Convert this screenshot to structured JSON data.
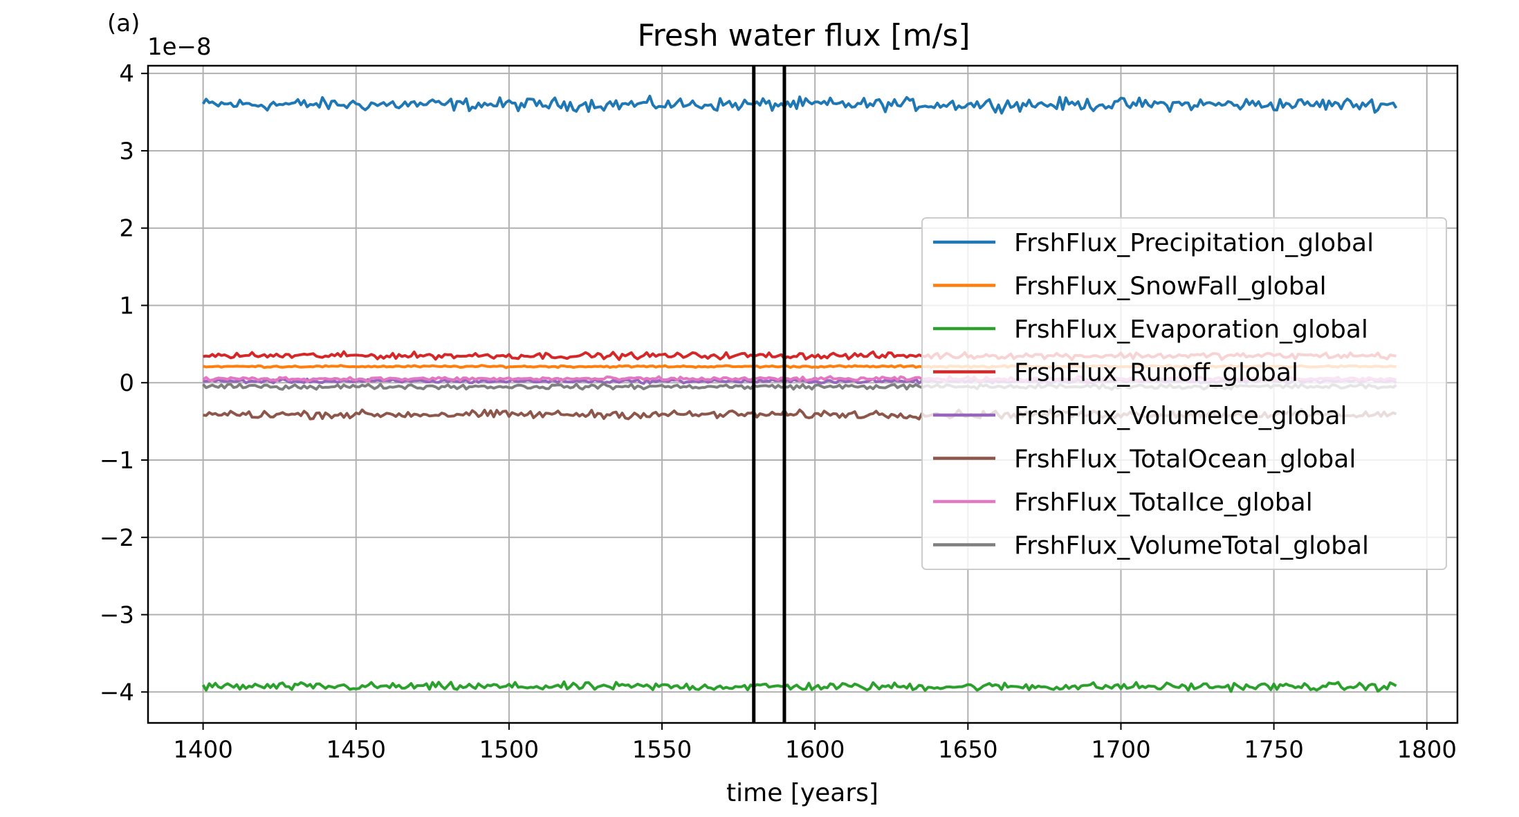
{
  "panel_label": "(a)",
  "chart_data": {
    "type": "line",
    "title": "Fresh water flux [m/s]",
    "xlabel": "time [years]",
    "ylabel": "",
    "y_scale_label": "1e−8",
    "y_scale": 1e-08,
    "xlim": [
      1382,
      1810
    ],
    "ylim": [
      -4.4,
      4.1
    ],
    "x_ticks": [
      1400,
      1450,
      1500,
      1550,
      1600,
      1650,
      1700,
      1750,
      1800
    ],
    "x_tick_labels": [
      "1400",
      "1450",
      "1500",
      "1550",
      "1600",
      "1650",
      "1700",
      "1750",
      "1800"
    ],
    "y_ticks": [
      -4,
      -3,
      -2,
      -1,
      0,
      1,
      2,
      3,
      4
    ],
    "y_tick_labels": [
      "−4",
      "−3",
      "−2",
      "−1",
      "0",
      "1",
      "2",
      "3",
      "4"
    ],
    "grid": true,
    "legend_position": "center-right",
    "x_start": 1400,
    "x_end": 1790,
    "vertical_lines": [
      1580,
      1590
    ],
    "series": [
      {
        "name": "FrshFlux_Precipitation_global",
        "color": "#1f77b4",
        "mean": 3.6,
        "noise": 0.04
      },
      {
        "name": "FrshFlux_SnowFall_global",
        "color": "#ff7f0e",
        "mean": 0.21,
        "noise": 0.006
      },
      {
        "name": "FrshFlux_Evaporation_global",
        "color": "#2ca02c",
        "mean": -3.93,
        "noise": 0.025
      },
      {
        "name": "FrshFlux_Runoff_global",
        "color": "#d62728",
        "mean": 0.35,
        "noise": 0.02
      },
      {
        "name": "FrshFlux_VolumeIce_global",
        "color": "#9467bd",
        "mean": 0.02,
        "noise": 0.012
      },
      {
        "name": "FrshFlux_TotalOcean_global",
        "color": "#8c564b",
        "mean": -0.41,
        "noise": 0.025
      },
      {
        "name": "FrshFlux_TotalIce_global",
        "color": "#e377c2",
        "mean": 0.05,
        "noise": 0.012
      },
      {
        "name": "FrshFlux_VolumeTotal_global",
        "color": "#7f7f7f",
        "mean": -0.05,
        "noise": 0.015
      }
    ]
  }
}
